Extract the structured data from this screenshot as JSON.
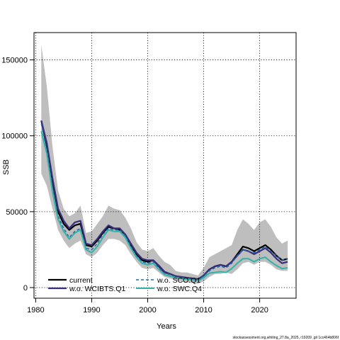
{
  "chart_data": {
    "type": "line",
    "xlabel": "Years",
    "ylabel": "SSB",
    "xlim": [
      1979.7,
      2026.5
    ],
    "ylim": [
      -7000,
      168000
    ],
    "xticks": [
      1980,
      1990,
      2000,
      2010,
      2020
    ],
    "yticks": [
      0,
      50000,
      100000,
      150000
    ],
    "ytick_labels": [
      "0",
      "50000",
      "100000",
      "150000"
    ],
    "grid": true,
    "legend_placement": "bottom-left",
    "x": [
      1981,
      1982,
      1983,
      1984,
      1985,
      1986,
      1987,
      1988,
      1989,
      1990,
      1991,
      1992,
      1993,
      1994,
      1995,
      1996,
      1997,
      1998,
      1999,
      2000,
      2001,
      2002,
      2003,
      2004,
      2005,
      2006,
      2007,
      2008,
      2009,
      2010,
      2011,
      2012,
      2013,
      2014,
      2015,
      2016,
      2017,
      2018,
      2019,
      2020,
      2021,
      2022,
      2023,
      2024,
      2025
    ],
    "band": {
      "color": "#bebebe",
      "lower": [
        75000,
        67000,
        52000,
        38000,
        31000,
        26000,
        29000,
        31000,
        22000,
        20000,
        23000,
        28000,
        32000,
        32000,
        31000,
        28000,
        22000,
        17000,
        13000,
        12000,
        13000,
        10000,
        7000,
        6000,
        5000,
        4000,
        3500,
        3000,
        2500,
        4000,
        7000,
        9000,
        9000,
        10000,
        9000,
        12000,
        16000,
        17000,
        15000,
        17000,
        17000,
        15000,
        12000,
        11000,
        11000
      ],
      "upper": [
        160000,
        132000,
        93000,
        64000,
        52000,
        47000,
        49000,
        54000,
        36000,
        37000,
        42000,
        47000,
        54000,
        52000,
        51000,
        46000,
        39000,
        30000,
        25000,
        24000,
        26000,
        21000,
        17000,
        15000,
        11000,
        10000,
        10000,
        9000,
        8000,
        13000,
        20000,
        22000,
        24000,
        26000,
        28000,
        38000,
        45000,
        42000,
        38000,
        43000,
        45000,
        40000,
        33000,
        29000,
        31000
      ]
    },
    "series": [
      {
        "name": "current",
        "color": "#000000",
        "dash": "solid",
        "width": 2.2,
        "values": [
          110000,
          93000,
          70000,
          50000,
          42000,
          38000,
          41000,
          42000,
          28000,
          27000,
          31000,
          36000,
          40000,
          39000,
          38000,
          35000,
          28000,
          22000,
          18000,
          17000,
          18000,
          14000,
          10000,
          9000,
          7500,
          7000,
          6500,
          6000,
          5500,
          8000,
          12000,
          14000,
          15000,
          14000,
          17000,
          22000,
          27000,
          26000,
          24000,
          26000,
          28000,
          25000,
          21000,
          18000,
          19000
        ]
      },
      {
        "name": "w.o. WCIBTS.Q1",
        "color": "#3a2e7a",
        "dash": "solid",
        "width": 2.2,
        "values": [
          110000,
          95000,
          72000,
          52000,
          44000,
          39000,
          43000,
          44000,
          29000,
          28000,
          32000,
          37000,
          41000,
          39000,
          39000,
          35000,
          29000,
          23000,
          19000,
          18000,
          18000,
          14500,
          10500,
          9000,
          7500,
          7000,
          6500,
          6000,
          5500,
          8000,
          12000,
          14000,
          15000,
          14000,
          17000,
          21000,
          25000,
          24000,
          22000,
          24000,
          26000,
          23000,
          19000,
          16000,
          17000
        ]
      },
      {
        "name": "w.o. SCO.Q1",
        "color": "#1a6aa8",
        "dash": "dashed",
        "width": 1.5,
        "values": [
          108000,
          90000,
          66000,
          47000,
          39000,
          33000,
          37000,
          39000,
          26000,
          25000,
          29000,
          35000,
          39000,
          38000,
          38000,
          34000,
          27000,
          21000,
          17000,
          16000,
          17000,
          13000,
          9500,
          8500,
          7000,
          6500,
          6000,
          5500,
          5000,
          7500,
          11000,
          13000,
          14000,
          13000,
          16000,
          21000,
          25000,
          24000,
          23000,
          25000,
          27000,
          24000,
          21000,
          18000,
          19000
        ]
      },
      {
        "name": "w.o. SWC.Q4",
        "color": "#33b2a8",
        "dash": "solid",
        "width": 2.0,
        "values": [
          103000,
          88000,
          63000,
          45000,
          37000,
          32000,
          36000,
          38000,
          25000,
          23000,
          27000,
          33000,
          38000,
          37000,
          37000,
          33000,
          26000,
          20000,
          16000,
          15000,
          16000,
          12000,
          8500,
          7500,
          6500,
          6000,
          5500,
          5000,
          4500,
          6500,
          9500,
          10000,
          10500,
          10000,
          12500,
          16000,
          19000,
          19000,
          17000,
          19000,
          20000,
          17000,
          14500,
          12500,
          13000
        ]
      }
    ],
    "legend": [
      {
        "label": "current"
      },
      {
        "label": "w.o. WCIBTS.Q1"
      },
      {
        "label": "w.o. SCO.Q1"
      },
      {
        "label": "w.o. SWC.Q4"
      }
    ]
  },
  "footer": "stockassessment.org,whiting_27.8a_2025, r19209 ,git 1cc464b806f"
}
